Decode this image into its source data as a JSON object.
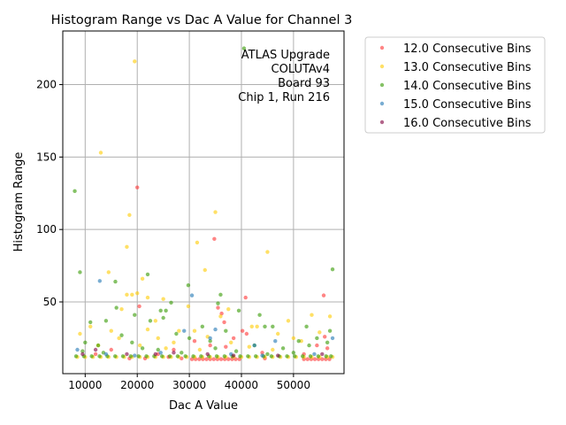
{
  "chart_data": {
    "type": "scatter",
    "title": "Histogram Range vs Dac A Value for Channel 3",
    "xlabel": "Dac A Value",
    "ylabel": "Histogram Range",
    "xlim": [
      5700,
      59700
    ],
    "ylim": [
      0.5,
      237
    ],
    "grid": true,
    "legend_placement": "outside-top-right",
    "xticks": [
      10000,
      20000,
      30000,
      40000,
      50000
    ],
    "xtick_labels": [
      "10000",
      "20000",
      "30000",
      "40000",
      "50000"
    ],
    "yticks": [
      50,
      100,
      150,
      200
    ],
    "ytick_labels": [
      "50",
      "100",
      "150",
      "200"
    ],
    "annotation": [
      "ATLAS Upgrade",
      "COLUTAv4",
      "Board 93",
      "Chip 1, Run 216"
    ],
    "series": [
      {
        "name": "12.0 Consecutive Bins",
        "color": "#ff3333",
        "points": [
          [
            20000,
            129
          ],
          [
            34800,
            93.5
          ],
          [
            20400,
            47
          ],
          [
            40800,
            53
          ],
          [
            55800,
            54.5
          ],
          [
            35500,
            46
          ],
          [
            36200,
            42
          ],
          [
            36700,
            36
          ],
          [
            38500,
            25
          ],
          [
            40200,
            30
          ],
          [
            41000,
            28
          ],
          [
            31000,
            23
          ],
          [
            34000,
            20
          ],
          [
            37000,
            19
          ],
          [
            44000,
            15
          ],
          [
            52000,
            14
          ],
          [
            54500,
            20
          ],
          [
            56000,
            26
          ],
          [
            56500,
            18
          ],
          [
            24000,
            14
          ],
          [
            26000,
            12
          ],
          [
            18500,
            11
          ],
          [
            15000,
            17
          ],
          [
            12000,
            14
          ],
          [
            27000,
            17
          ],
          [
            30500,
            10.5
          ],
          [
            31200,
            10.5
          ],
          [
            31900,
            10.5
          ],
          [
            32600,
            10.5
          ],
          [
            33300,
            10.5
          ],
          [
            34000,
            10.5
          ],
          [
            34700,
            10.5
          ],
          [
            35400,
            10.5
          ],
          [
            36100,
            10.5
          ],
          [
            36800,
            10.5
          ],
          [
            37500,
            10.5
          ],
          [
            38200,
            10.5
          ],
          [
            38900,
            10.5
          ],
          [
            39600,
            10.5
          ],
          [
            52000,
            10.5
          ],
          [
            52700,
            10.5
          ],
          [
            53400,
            10.5
          ],
          [
            54100,
            10.5
          ],
          [
            54800,
            10.5
          ],
          [
            55500,
            10.5
          ],
          [
            56200,
            10.5
          ],
          [
            56900,
            10.5
          ],
          [
            21500,
            11
          ],
          [
            28500,
            11
          ],
          [
            44500,
            11
          ]
        ]
      },
      {
        "name": "13.0 Consecutive Bins",
        "color": "#ffcc00",
        "points": [
          [
            19500,
            216
          ],
          [
            13000,
            153
          ],
          [
            18500,
            110
          ],
          [
            18000,
            88
          ],
          [
            35000,
            112
          ],
          [
            33000,
            72
          ],
          [
            31500,
            91
          ],
          [
            45000,
            84.5
          ],
          [
            14500,
            70.5
          ],
          [
            21000,
            66
          ],
          [
            20000,
            56
          ],
          [
            18000,
            55
          ],
          [
            22000,
            53
          ],
          [
            19000,
            55
          ],
          [
            25000,
            52
          ],
          [
            17000,
            45
          ],
          [
            23500,
            37
          ],
          [
            29800,
            47
          ],
          [
            31000,
            30
          ],
          [
            36000,
            40
          ],
          [
            37500,
            45
          ],
          [
            42000,
            33
          ],
          [
            43000,
            33
          ],
          [
            49000,
            37
          ],
          [
            53500,
            41
          ],
          [
            57000,
            40
          ],
          [
            9000,
            28
          ],
          [
            11000,
            33
          ],
          [
            15000,
            30
          ],
          [
            16500,
            25
          ],
          [
            22000,
            31
          ],
          [
            24000,
            25
          ],
          [
            27000,
            22
          ],
          [
            28000,
            30
          ],
          [
            33500,
            26
          ],
          [
            38000,
            22
          ],
          [
            47000,
            28
          ],
          [
            50000,
            25
          ],
          [
            51500,
            23
          ],
          [
            55000,
            29
          ],
          [
            12500,
            20
          ],
          [
            20500,
            20
          ],
          [
            25500,
            18
          ],
          [
            32000,
            17
          ],
          [
            41500,
            19
          ],
          [
            46000,
            17
          ],
          [
            8500,
            12
          ],
          [
            10000,
            12
          ],
          [
            11500,
            12
          ],
          [
            13000,
            12
          ],
          [
            14500,
            12
          ],
          [
            16000,
            12
          ],
          [
            17500,
            12
          ],
          [
            19000,
            12
          ],
          [
            20500,
            12
          ],
          [
            22000,
            12
          ],
          [
            23500,
            12
          ],
          [
            25000,
            12
          ],
          [
            26500,
            12
          ],
          [
            28000,
            12
          ],
          [
            29500,
            12
          ],
          [
            31000,
            12
          ],
          [
            32500,
            12
          ],
          [
            34000,
            12
          ],
          [
            35500,
            12
          ],
          [
            37000,
            12
          ],
          [
            38500,
            12
          ],
          [
            40000,
            12
          ],
          [
            41500,
            12
          ],
          [
            43000,
            12
          ],
          [
            44500,
            12
          ],
          [
            46000,
            12
          ],
          [
            47500,
            12
          ],
          [
            49000,
            12
          ],
          [
            50500,
            12
          ],
          [
            52000,
            12
          ],
          [
            53500,
            12
          ],
          [
            55000,
            12
          ],
          [
            56500,
            12
          ],
          [
            57500,
            12
          ]
        ]
      },
      {
        "name": "14.0 Consecutive Bins",
        "color": "#339900",
        "points": [
          [
            8000,
            126.5
          ],
          [
            9000,
            70.5
          ],
          [
            22000,
            69
          ],
          [
            40500,
            225
          ],
          [
            57500,
            72.5
          ],
          [
            15800,
            64
          ],
          [
            29800,
            61.5
          ],
          [
            36000,
            55
          ],
          [
            35500,
            49
          ],
          [
            26500,
            49.5
          ],
          [
            25500,
            44
          ],
          [
            24500,
            44
          ],
          [
            39500,
            44
          ],
          [
            19500,
            41
          ],
          [
            43500,
            41
          ],
          [
            11000,
            36
          ],
          [
            14000,
            37
          ],
          [
            16000,
            46
          ],
          [
            22500,
            37
          ],
          [
            25000,
            39
          ],
          [
            32500,
            33
          ],
          [
            44500,
            33
          ],
          [
            46000,
            33
          ],
          [
            52500,
            33
          ],
          [
            54500,
            25
          ],
          [
            57000,
            30
          ],
          [
            10000,
            22
          ],
          [
            12500,
            20
          ],
          [
            17000,
            27
          ],
          [
            19000,
            22
          ],
          [
            21000,
            18
          ],
          [
            27500,
            28
          ],
          [
            30000,
            25
          ],
          [
            34000,
            23
          ],
          [
            37000,
            30
          ],
          [
            42500,
            20
          ],
          [
            48000,
            18
          ],
          [
            51000,
            23
          ],
          [
            53000,
            20
          ],
          [
            56500,
            22
          ],
          [
            9500,
            16
          ],
          [
            13500,
            15
          ],
          [
            24000,
            17
          ],
          [
            28500,
            15
          ],
          [
            35000,
            18
          ],
          [
            39000,
            16
          ],
          [
            45000,
            14
          ],
          [
            50000,
            15
          ],
          [
            8250,
            12.5
          ],
          [
            9750,
            12.5
          ],
          [
            11250,
            12.5
          ],
          [
            12750,
            12.5
          ],
          [
            14250,
            12.5
          ],
          [
            15750,
            12.5
          ],
          [
            17250,
            12.5
          ],
          [
            18750,
            12.5
          ],
          [
            20250,
            12.5
          ],
          [
            21750,
            12.5
          ],
          [
            23250,
            12.5
          ],
          [
            24750,
            12.5
          ],
          [
            26250,
            12.5
          ],
          [
            27750,
            12.5
          ],
          [
            29250,
            12.5
          ],
          [
            30750,
            12.5
          ],
          [
            32250,
            12.5
          ],
          [
            33750,
            12.5
          ],
          [
            35250,
            12.5
          ],
          [
            36750,
            12.5
          ],
          [
            38250,
            12.5
          ],
          [
            39750,
            12.5
          ],
          [
            41250,
            12.5
          ],
          [
            42750,
            12.5
          ],
          [
            44250,
            12.5
          ],
          [
            45750,
            12.5
          ],
          [
            47250,
            12.5
          ],
          [
            48750,
            12.5
          ],
          [
            50250,
            12.5
          ],
          [
            51750,
            12.5
          ],
          [
            53250,
            12.5
          ],
          [
            54750,
            12.5
          ],
          [
            56250,
            12.5
          ],
          [
            57200,
            12.5
          ]
        ]
      },
      {
        "name": "15.0 Consecutive Bins",
        "color": "#1f77b4",
        "points": [
          [
            12800,
            64.5
          ],
          [
            30500,
            54.5
          ],
          [
            35000,
            31
          ],
          [
            57500,
            25
          ],
          [
            46500,
            23
          ],
          [
            29000,
            30
          ],
          [
            42500,
            20
          ],
          [
            34000,
            25
          ],
          [
            8500,
            17
          ],
          [
            14000,
            14
          ],
          [
            24500,
            15
          ],
          [
            38000,
            14
          ],
          [
            54000,
            14
          ],
          [
            19500,
            13
          ],
          [
            44000,
            13
          ]
        ]
      },
      {
        "name": "16.0 Consecutive Bins",
        "color": "#800040",
        "points": [
          [
            9500,
            14
          ],
          [
            12000,
            17
          ],
          [
            18000,
            14
          ],
          [
            23500,
            14
          ],
          [
            27000,
            15
          ],
          [
            33500,
            14
          ],
          [
            38500,
            13
          ],
          [
            47000,
            13
          ],
          [
            55500,
            14
          ]
        ]
      }
    ]
  }
}
